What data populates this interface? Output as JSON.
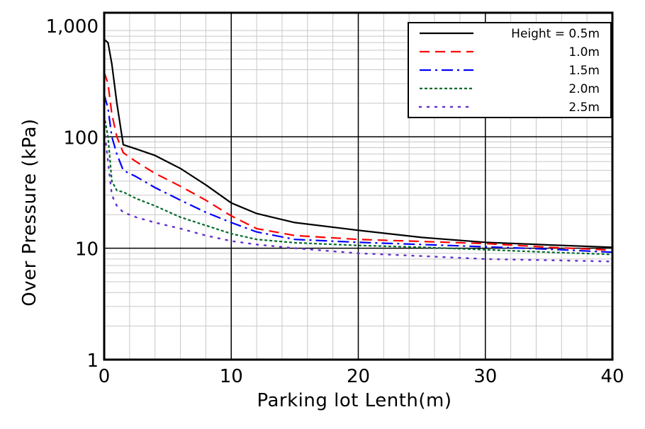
{
  "chart_data": {
    "type": "line",
    "title": "",
    "xlabel": "Parking lot Lenth(m)",
    "ylabel": "Over Pressure (kPa)",
    "x_scale": "linear",
    "y_scale": "log",
    "xlim": [
      0,
      40
    ],
    "ylim": [
      1,
      1300
    ],
    "grid": true,
    "legend_position": "top-right",
    "x_ticks": [
      {
        "value": 0,
        "label": "0"
      },
      {
        "value": 10,
        "label": "10"
      },
      {
        "value": 20,
        "label": "20"
      },
      {
        "value": 30,
        "label": "30"
      },
      {
        "value": 40,
        "label": "40"
      }
    ],
    "y_ticks": [
      {
        "value": 1,
        "label": "1"
      },
      {
        "value": 10,
        "label": "10"
      },
      {
        "value": 100,
        "label": "100"
      },
      {
        "value": 1000,
        "label": "1,000"
      }
    ],
    "series": [
      {
        "name": "Height = 0.5m",
        "color": "#000000",
        "style": "solid",
        "x": [
          0,
          0.3,
          0.6,
          1.0,
          1.5,
          2.5,
          4,
          6,
          8,
          10,
          12,
          15,
          20,
          25,
          30,
          35,
          40
        ],
        "y": [
          750,
          700,
          450,
          200,
          85,
          78,
          68,
          52,
          37,
          25.5,
          20.5,
          17,
          14.5,
          12.5,
          11.3,
          10.7,
          10.2
        ]
      },
      {
        "name": "1.0m",
        "color": "#ff0000",
        "style": "dashed",
        "x": [
          0,
          0.3,
          0.6,
          1.0,
          1.5,
          2.5,
          4,
          6,
          8,
          10,
          12,
          15,
          20,
          25,
          30,
          35,
          40
        ],
        "y": [
          380,
          300,
          160,
          100,
          72,
          60,
          47,
          36,
          27,
          19.5,
          15,
          13,
          12,
          11.5,
          11,
          10.2,
          9.6
        ]
      },
      {
        "name": "1.5m",
        "color": "#0000ff",
        "style": "dashdot",
        "x": [
          0,
          0.3,
          0.6,
          1.0,
          1.5,
          2.5,
          4,
          6,
          8,
          10,
          12,
          15,
          20,
          25,
          30,
          35,
          40
        ],
        "y": [
          240,
          180,
          100,
          70,
          50,
          44,
          35,
          27,
          21,
          17,
          14,
          12,
          11.3,
          10.8,
          10.3,
          9.8,
          9.2
        ]
      },
      {
        "name": "2.0m",
        "color": "#006b2a",
        "style": "dotted",
        "x": [
          0,
          0.3,
          0.6,
          1.0,
          1.5,
          2.5,
          4,
          6,
          8,
          10,
          12,
          15,
          20,
          25,
          30,
          35,
          40
        ],
        "y": [
          155,
          100,
          40,
          33,
          32,
          28,
          24,
          19,
          16,
          13.5,
          12,
          11.2,
          10.6,
          10.2,
          9.7,
          9.2,
          8.8
        ]
      },
      {
        "name": "2.5m",
        "color": "#6633cc",
        "style": "sparse-dotted",
        "x": [
          0,
          0.3,
          0.6,
          1.0,
          1.5,
          2.5,
          4,
          6,
          8,
          10,
          12,
          15,
          20,
          25,
          30,
          35,
          40
        ],
        "y": [
          120,
          60,
          30,
          24,
          21,
          19,
          17,
          15,
          13,
          11.6,
          10.8,
          10,
          9,
          8.5,
          8,
          7.8,
          7.6
        ]
      }
    ]
  }
}
